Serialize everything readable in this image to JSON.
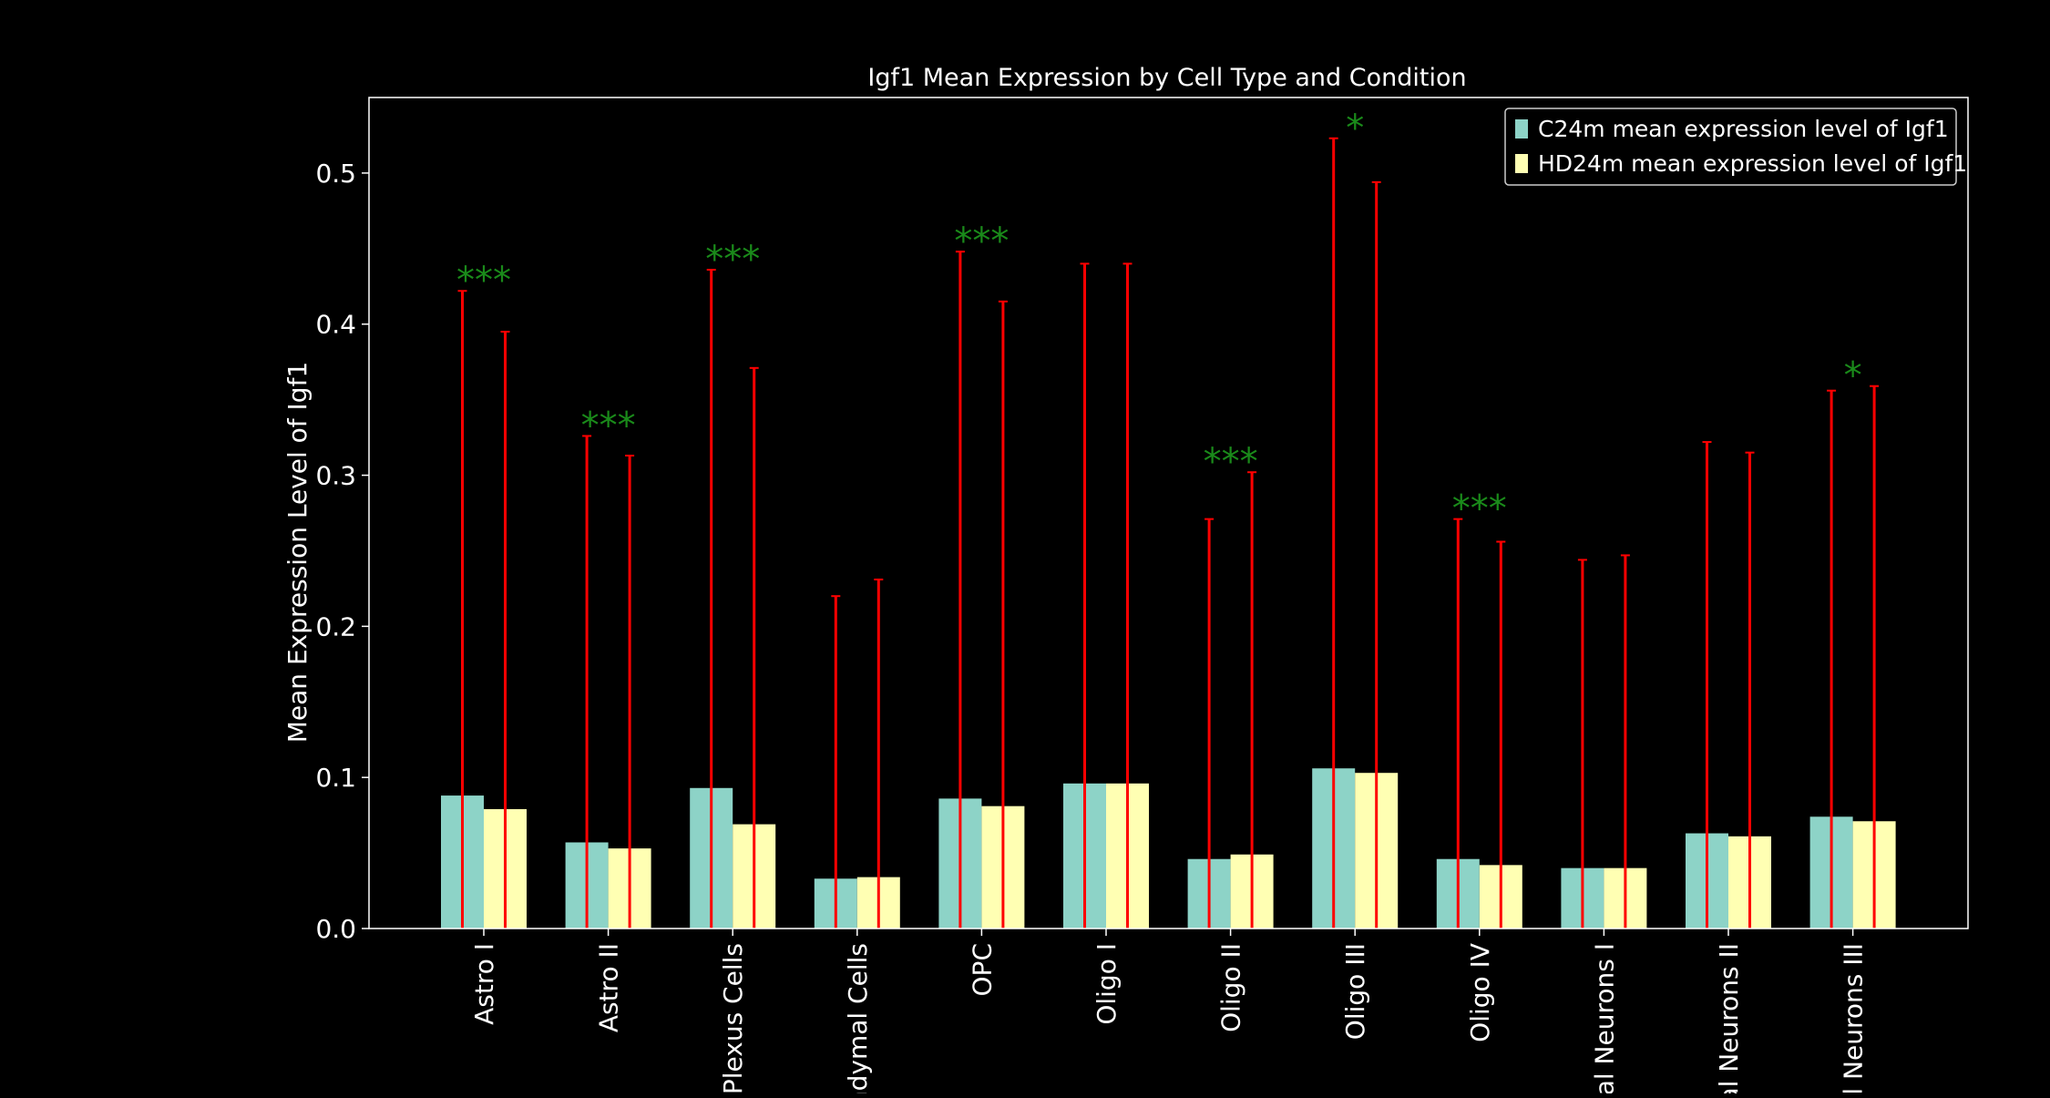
{
  "chart_data": {
    "type": "bar",
    "title": "Igf1 Mean Expression by Cell Type and Condition",
    "xlabel": "",
    "ylabel": "Mean Expression Level of Igf1",
    "ylim": [
      0,
      0.55
    ],
    "yticks": [
      "0.0",
      "0.1",
      "0.2",
      "0.3",
      "0.4",
      "0.5"
    ],
    "yticks_values": [
      0.0,
      0.1,
      0.2,
      0.3,
      0.4,
      0.5
    ],
    "grid": false,
    "legend_position": "top-right",
    "categories": [
      "Astro I",
      "Astro II",
      "Plexus Cells",
      "ndymal Cells",
      "OPC",
      "Oligo I",
      "Oligo II",
      "Oligo III",
      "Oligo IV",
      "tal Neurons I",
      "al Neurons II",
      "al Neurons III"
    ],
    "series": [
      {
        "name": "C24m mean expression level of Igf1",
        "color": "#8dd3c7",
        "values": [
          0.088,
          0.057,
          0.093,
          0.033,
          0.086,
          0.096,
          0.046,
          0.106,
          0.046,
          0.04,
          0.063,
          0.074
        ],
        "error_upper": [
          0.422,
          0.326,
          0.436,
          0.22,
          0.448,
          0.44,
          0.271,
          0.523,
          0.271,
          0.244,
          0.322,
          0.356
        ]
      },
      {
        "name": "HD24m mean expression level of Igf1",
        "color": "#ffffb3",
        "values": [
          0.079,
          0.053,
          0.069,
          0.034,
          0.081,
          0.096,
          0.049,
          0.103,
          0.042,
          0.04,
          0.061,
          0.071
        ],
        "error_upper": [
          0.395,
          0.313,
          0.371,
          0.231,
          0.415,
          0.44,
          0.302,
          0.494,
          0.256,
          0.247,
          0.315,
          0.359
        ]
      }
    ],
    "error_color": "#ff0000",
    "significance": [
      "***",
      "***",
      "***",
      "",
      "***",
      "",
      "***",
      "*",
      "***",
      "",
      "",
      "*"
    ],
    "significance_color": "#1a8a1a"
  }
}
